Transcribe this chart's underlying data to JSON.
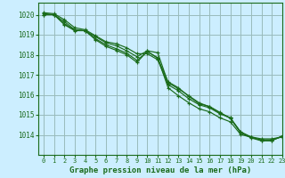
{
  "bg_color": "#cceeff",
  "line_color": "#1a6b1a",
  "grid_color": "#99bbbb",
  "xlabel": "Graphe pression niveau de la mer (hPa)",
  "xlim": [
    -0.5,
    23
  ],
  "ylim": [
    1013.0,
    1020.6
  ],
  "xticks": [
    0,
    1,
    2,
    3,
    4,
    5,
    6,
    7,
    8,
    9,
    10,
    11,
    12,
    13,
    14,
    15,
    16,
    17,
    18,
    19,
    20,
    21,
    22,
    23
  ],
  "yticks": [
    1014,
    1015,
    1016,
    1017,
    1018,
    1019,
    1020
  ],
  "series": [
    [
      1020.1,
      1020.05,
      1019.75,
      1019.35,
      1019.25,
      1018.95,
      1018.65,
      1018.55,
      1018.35,
      1018.05,
      1018.05,
      1017.75,
      1016.5,
      1016.2,
      1015.8,
      1015.5,
      1015.35,
      1015.05,
      1014.85,
      1014.15,
      1013.9,
      1013.8,
      1013.8,
      1013.9
    ],
    [
      1020.05,
      1020.0,
      1019.65,
      1019.25,
      1019.2,
      1018.9,
      1018.6,
      1018.45,
      1018.2,
      1017.9,
      1018.2,
      1018.1,
      1016.6,
      1016.3,
      1015.95,
      1015.6,
      1015.4,
      1015.1,
      1014.85,
      1014.1,
      1013.88,
      1013.73,
      1013.73,
      1013.92
    ],
    [
      1020.0,
      1020.0,
      1019.55,
      1019.22,
      1019.2,
      1018.8,
      1018.5,
      1018.3,
      1018.08,
      1017.72,
      1018.15,
      1017.85,
      1016.35,
      1015.95,
      1015.6,
      1015.3,
      1015.15,
      1014.85,
      1014.65,
      1014.02,
      1013.88,
      1013.75,
      1013.75,
      1013.9
    ],
    [
      1020.0,
      1020.0,
      1019.5,
      1019.2,
      1019.2,
      1018.75,
      1018.42,
      1018.22,
      1018.0,
      1017.62,
      1018.18,
      1017.82,
      1016.65,
      1016.35,
      1015.92,
      1015.55,
      1015.42,
      1015.12,
      1014.82,
      1014.12,
      1013.85,
      1013.7,
      1013.7,
      1013.95
    ]
  ]
}
